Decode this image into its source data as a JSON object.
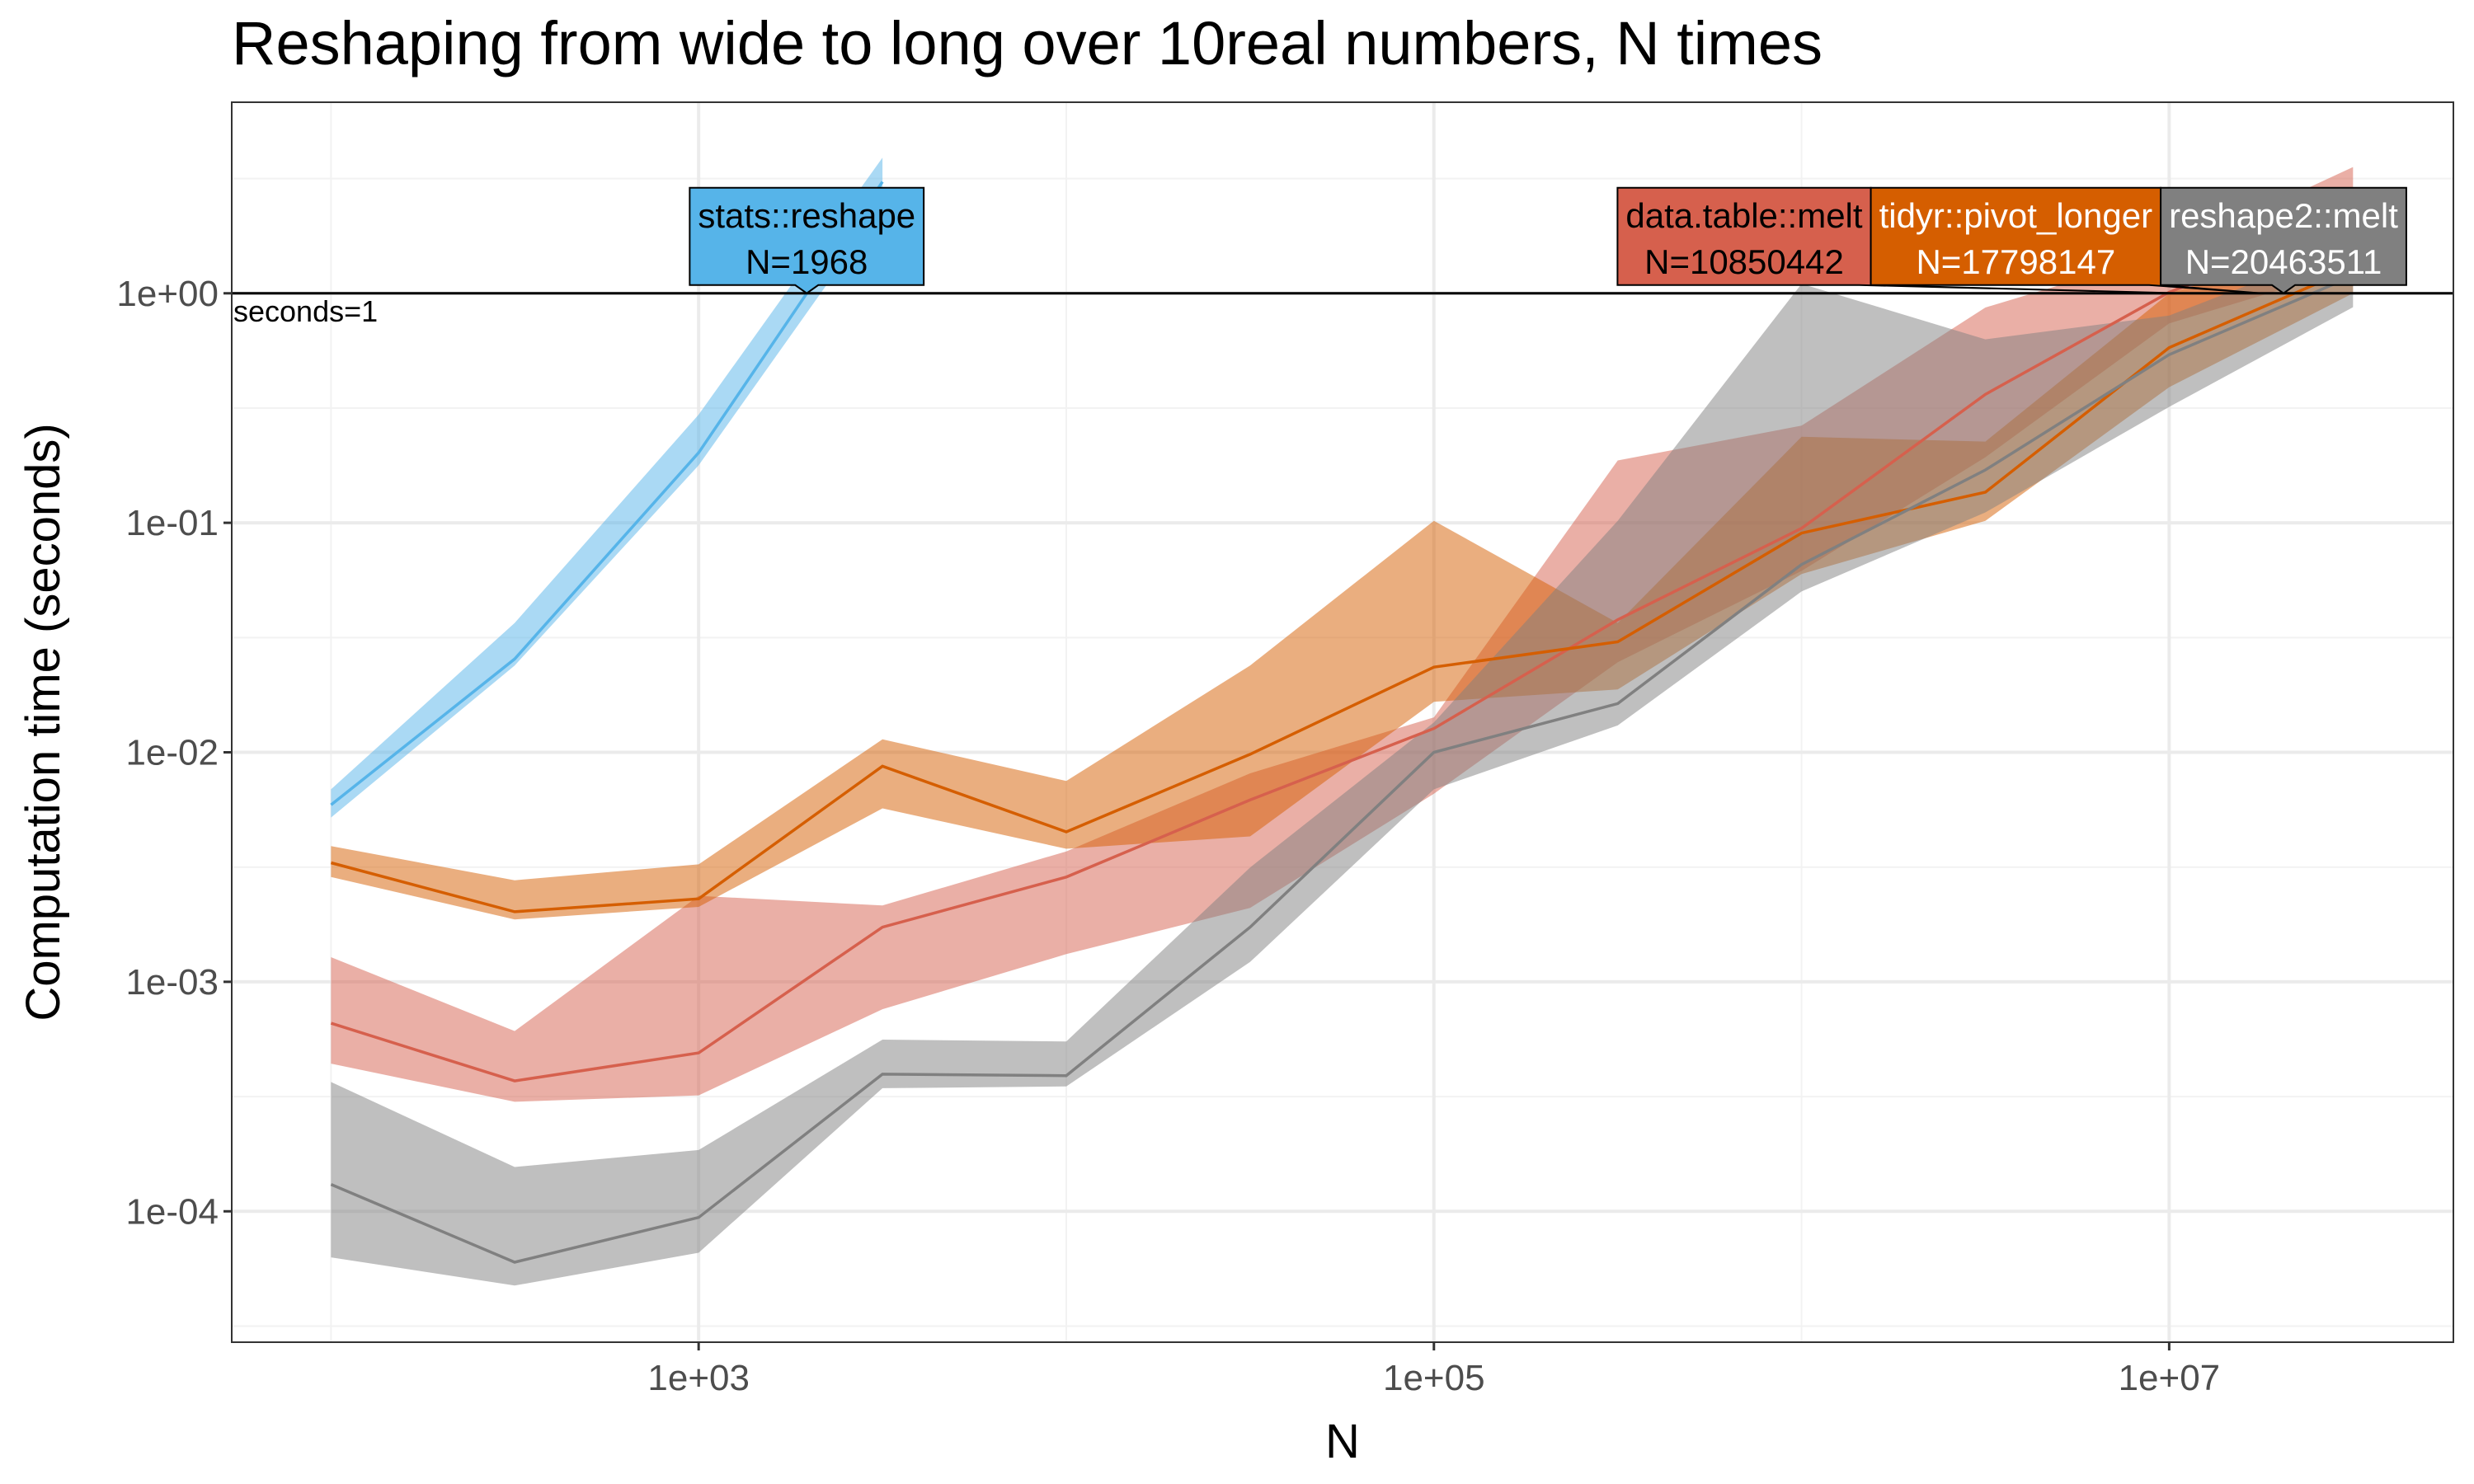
{
  "chart_data": {
    "type": "line",
    "title": "Reshaping from wide to long over 10real numbers, N times",
    "x_label": "N",
    "y_label": "Computation time (seconds)",
    "x_log": true,
    "y_log": true,
    "grid": true,
    "xlim": [
      53.7,
      59300000
    ],
    "ylim": [
      2.69e-05,
      6.8
    ],
    "xticks": [
      {
        "value": 1000,
        "label": "1e+03"
      },
      {
        "value": 100000,
        "label": "1e+05"
      },
      {
        "value": 10000000,
        "label": "1e+07"
      }
    ],
    "yticks": [
      {
        "value": 0.0001,
        "label": "1e-04"
      },
      {
        "value": 0.001,
        "label": "1e-03"
      },
      {
        "value": 0.01,
        "label": "1e-02"
      },
      {
        "value": 0.1,
        "label": "1e-01"
      },
      {
        "value": 1,
        "label": "1e+00"
      }
    ],
    "hline": {
      "value": 1,
      "label": "seconds=1"
    },
    "x": [
      100,
      316,
      1000,
      3162,
      10000,
      31623,
      100000,
      316228,
      1000000,
      3162278,
      10000000,
      31622777
    ],
    "series": [
      {
        "name": "stats::reshape",
        "color": "#56B4E9",
        "label_color": "#000000",
        "values": [
          0.0059,
          0.0255,
          0.202,
          3.06,
          null,
          null,
          null,
          null,
          null,
          null,
          null,
          null
        ],
        "lower": [
          0.0052,
          0.0239,
          0.178,
          2.4,
          null,
          null,
          null,
          null,
          null,
          null,
          null,
          null
        ],
        "upper": [
          0.0069,
          0.0366,
          0.296,
          3.9,
          null,
          null,
          null,
          null,
          null,
          null,
          null,
          null
        ],
        "threshold_n": {
          "value": 1968,
          "label": "N=1968"
        }
      },
      {
        "name": "data.table::melt",
        "color": "#D6604D",
        "label_color": "#000000",
        "values": [
          0.00066,
          0.00037,
          0.00049,
          0.00173,
          0.00286,
          0.0062,
          0.0127,
          0.0378,
          0.0946,
          0.363,
          1.01,
          2.07
        ],
        "lower": [
          0.00044,
          0.0003,
          0.00032,
          0.00076,
          0.00132,
          0.0021,
          0.0066,
          0.0247,
          0.0617,
          0.193,
          0.74,
          1.29
        ],
        "upper": [
          0.00128,
          0.00061,
          0.00237,
          0.00215,
          0.0037,
          0.0081,
          0.0142,
          0.187,
          0.265,
          0.867,
          1.51,
          3.55
        ],
        "threshold_n": {
          "value": 10850442,
          "label": "N=10850442"
        }
      },
      {
        "name": "tidyr::pivot_longer",
        "color": "#D55E00",
        "label_color": "#ffffff",
        "values": [
          0.0033,
          0.00202,
          0.0023,
          0.0087,
          0.0045,
          0.0098,
          0.0235,
          0.0303,
          0.0902,
          0.136,
          0.58,
          1.29
        ],
        "lower": [
          0.00286,
          0.00187,
          0.00212,
          0.0057,
          0.0038,
          0.0043,
          0.0166,
          0.0188,
          0.0598,
          0.102,
          0.39,
          1.0
        ],
        "upper": [
          0.0039,
          0.00277,
          0.00325,
          0.0114,
          0.0075,
          0.0239,
          0.102,
          0.0366,
          0.237,
          0.226,
          1.0,
          1.77
        ],
        "threshold_n": {
          "value": 17798147,
          "label": "N=17798147"
        }
      },
      {
        "name": "reshape2::melt",
        "color": "#808080",
        "label_color": "#ffffff",
        "values": [
          0.000131,
          6e-05,
          9.4e-05,
          0.000396,
          0.00039,
          0.00173,
          0.01,
          0.0163,
          0.0658,
          0.17,
          0.54,
          1.19
        ],
        "lower": [
          6.3e-05,
          4.75e-05,
          6.6e-05,
          0.000344,
          0.00035,
          0.00122,
          0.0069,
          0.0131,
          0.0502,
          0.111,
          0.32,
          0.87
        ],
        "upper": [
          0.000366,
          0.000156,
          0.000185,
          0.00056,
          0.00055,
          0.00315,
          0.0135,
          0.102,
          1.1,
          0.63,
          0.8,
          1.63
        ],
        "threshold_n": {
          "value": 20463511,
          "label": "N=20463511"
        }
      }
    ]
  }
}
